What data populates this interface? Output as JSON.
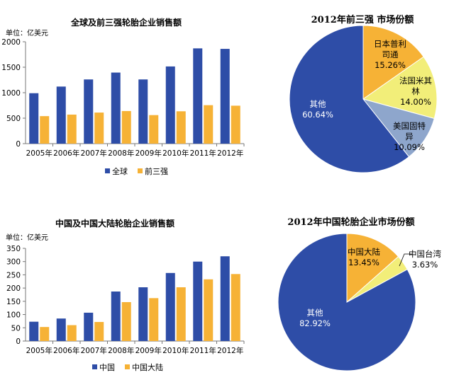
{
  "colors": {
    "blue": "#2E4DA7",
    "orange": "#F6B236",
    "yellow": "#F2EE79",
    "lightblue": "#8EA6CC"
  },
  "chart_data": [
    {
      "type": "bar",
      "title": "全球及前三强轮胎企业销售额",
      "unit_label": "单位：亿美元",
      "categories": [
        "2005年",
        "2006年",
        "2007年",
        "2008年",
        "2009年",
        "2010年",
        "2011年",
        "2012年"
      ],
      "ylim": [
        0,
        2000
      ],
      "yticks": [
        0,
        500,
        1000,
        1500,
        2000
      ],
      "series": [
        {
          "name": "全球",
          "color": "#2E4DA7",
          "values": [
            990,
            1120,
            1260,
            1395,
            1260,
            1515,
            1870,
            1860
          ]
        },
        {
          "name": "前三强",
          "color": "#F6B236",
          "values": [
            540,
            570,
            610,
            640,
            560,
            635,
            755,
            745
          ]
        }
      ],
      "legend": "bottom",
      "grid": false
    },
    {
      "type": "pie",
      "title": "2012年前三强 市场份额",
      "slices": [
        {
          "label": "日本普利司通",
          "display_lines": [
            "日本普利",
            "司通"
          ],
          "value": 15.26,
          "display_value": "15.26%",
          "color": "#F6B236"
        },
        {
          "label": "法国米其林",
          "display_lines": [
            "法国米其",
            "林"
          ],
          "value": 14.0,
          "display_value": "14.00%",
          "color": "#F2EE79"
        },
        {
          "label": "美国固特异",
          "display_lines": [
            "美国固特",
            "异"
          ],
          "value": 10.09,
          "display_value": "10.09%",
          "color": "#8EA6CC"
        },
        {
          "label": "其他",
          "display_lines": [
            "其他"
          ],
          "value": 60.64,
          "display_value": "60.64%",
          "color": "#2E4DA7"
        }
      ]
    },
    {
      "type": "bar",
      "title": "中国及中国大陆轮胎企业销售额",
      "unit_label": "单位：亿美元",
      "categories": [
        "2005年",
        "2006年",
        "2007年",
        "2008年",
        "2009年",
        "2010年",
        "2011年",
        "2012年"
      ],
      "ylim": [
        0,
        350
      ],
      "yticks": [
        0,
        50,
        100,
        150,
        200,
        250,
        300,
        350
      ],
      "series": [
        {
          "name": "中国",
          "color": "#2E4DA7",
          "values": [
            73,
            85,
            107,
            187,
            203,
            257,
            300,
            320
          ]
        },
        {
          "name": "中国大陆",
          "color": "#F6B236",
          "values": [
            53,
            60,
            72,
            147,
            162,
            203,
            233,
            253
          ]
        }
      ],
      "legend": "bottom",
      "grid": false
    },
    {
      "type": "pie",
      "title": "2012年中国轮胎企业市场份额",
      "slices": [
        {
          "label": "中国大陆",
          "display_lines": [
            "中国大陆"
          ],
          "value": 13.45,
          "display_value": "13.45%",
          "color": "#F6B236"
        },
        {
          "label": "中国台湾",
          "display_lines": [
            "中国台湾"
          ],
          "value": 3.63,
          "display_value": "3.63%",
          "color": "#F2EE79"
        },
        {
          "label": "其他",
          "display_lines": [
            "其他"
          ],
          "value": 82.92,
          "display_value": "82.92%",
          "color": "#2E4DA7"
        }
      ]
    }
  ]
}
